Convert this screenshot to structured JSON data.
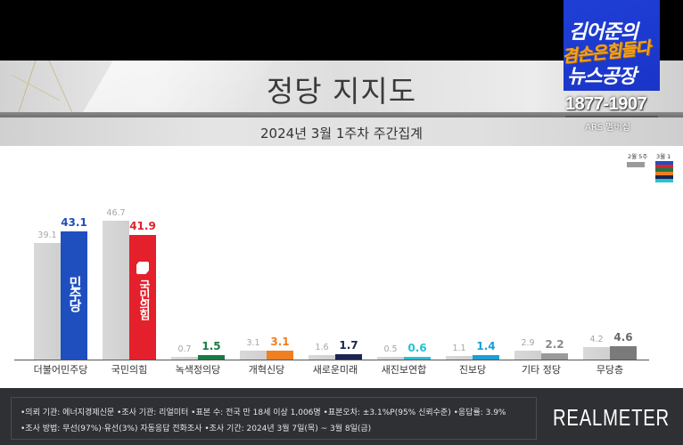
{
  "header": {
    "title": "정당 지지도",
    "subtitle": "2024년 3월 1주차 주간집계"
  },
  "overlay": {
    "channel_line1": "김어준의",
    "channel_line2": "겸손은힘들다",
    "channel_line3": "뉴스공장",
    "phone": "1877-1907",
    "ars_label": "ARS 멤버십"
  },
  "legend": {
    "prev_label": "2월 5주",
    "curr_label": "3월 1주",
    "curr_swatch_colors": [
      "#1f4fbf",
      "#e3202b",
      "#1a7a44",
      "#f07f22",
      "#1b2550",
      "#27c1d6"
    ]
  },
  "chart_data": {
    "type": "bar",
    "title": "정당 지지도",
    "subtitle": "2024년 3월 1주차 주간집계",
    "xlabel": "",
    "ylabel": "",
    "ylim": [
      0,
      50
    ],
    "grid": false,
    "legend_position": "top-right",
    "categories": [
      "더불어민주당",
      "국민의힘",
      "녹색정의당",
      "개혁신당",
      "새로운미래",
      "새진보연합",
      "진보당",
      "기타 정당",
      "무당층"
    ],
    "series": [
      {
        "name": "2월 5주",
        "values": [
          39.1,
          46.7,
          0.7,
          3.1,
          1.6,
          0.5,
          1.1,
          2.9,
          4.2
        ],
        "color": "#d4d4d4"
      },
      {
        "name": "3월 1주",
        "values": [
          43.1,
          41.9,
          1.5,
          3.1,
          1.7,
          0.6,
          1.4,
          2.2,
          4.6
        ],
        "colors": [
          "#1f4fbf",
          "#e3202b",
          "#1a7a44",
          "#f07f22",
          "#1b2550",
          "#27c1d6",
          "#1aa0d8",
          "#9a9a9a",
          "#7a7a7a"
        ]
      }
    ],
    "bar_logos": {
      "더불어민주당": "더불어민주당",
      "국민의힘": "국민의힘"
    }
  },
  "display": {
    "values_prev": [
      "39.1",
      "46.7",
      "0.7",
      "3.1",
      "1.6",
      "0.5",
      "1.1",
      "2.9",
      "4.2"
    ],
    "values_curr": [
      "43.1",
      "41.9",
      "1.5",
      "3.1",
      "1.7",
      "0.6",
      "1.4",
      "2.2",
      "4.6"
    ],
    "label_colors": [
      "#1f4fbf",
      "#e3202b",
      "#1a7a44",
      "#f07f22",
      "#1b2550",
      "#27c1d6",
      "#1aa0d8",
      "#8a8a8a",
      "#6a6a6a"
    ],
    "dem_logo": "민주당",
    "ppp_logo": "국민의힘"
  },
  "footer": {
    "line1": "•의뢰 기관: 에너지경제신문  •조사 기관: 리얼미터 •표본 수: 전국 만 18세 이상 1,006명 •표본오차: ±3.1%P(95% 신뢰수준) •응답률: 3.9%",
    "line2": "•조사 방법: 무선(97%)·유선(3%) 자동응답 전화조사 •조사 기간: 2024년 3월 7일(목) ~ 3월 8일(금)",
    "brand": "REALMETER"
  }
}
